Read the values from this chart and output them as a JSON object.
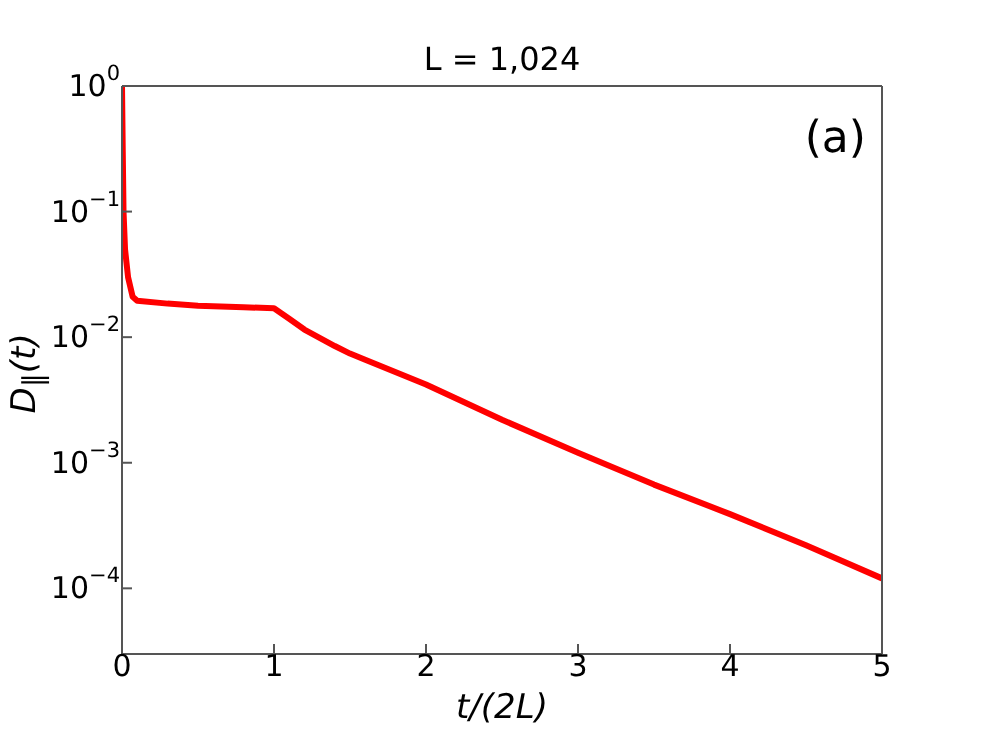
{
  "chart_data": {
    "type": "line",
    "title": "L = 1,024",
    "xlabel": "t/(2L)",
    "ylabel": "D$_{∥}$(t)",
    "annotations": [
      "(a)"
    ],
    "log": "y",
    "xlim": [
      0,
      5
    ],
    "xticks": [
      0,
      1,
      2,
      3,
      4,
      5
    ],
    "ylim": [
      3e-05,
      1
    ],
    "yticks": [
      {
        "value": 0.0001,
        "label": "10$^{−4}$"
      },
      {
        "value": 0.001,
        "label": "10$^{−3}$"
      },
      {
        "value": 0.01,
        "label": "10$^{−2}$"
      },
      {
        "value": 0.1,
        "label": "10$^{−1}$"
      },
      {
        "value": 1,
        "label": "10$^{0}$"
      }
    ],
    "series": [
      {
        "color": "#ff0000",
        "x": [
          0,
          0.005,
          0.01,
          0.02,
          0.04,
          0.07,
          0.1,
          0.3,
          0.5,
          0.8,
          1.0,
          1.1,
          1.2,
          1.4,
          1.5,
          1.6,
          2.0,
          2.5,
          3.0,
          3.5,
          4.0,
          4.5,
          5.0
        ],
        "values": [
          1,
          0.3,
          0.1,
          0.05,
          0.03,
          0.021,
          0.0195,
          0.0185,
          0.0178,
          0.0173,
          0.017,
          0.014,
          0.0115,
          0.0085,
          0.0074,
          0.0066,
          0.0042,
          0.0022,
          0.0012,
          0.00067,
          0.00039,
          0.00022,
          0.00012
        ]
      }
    ]
  }
}
